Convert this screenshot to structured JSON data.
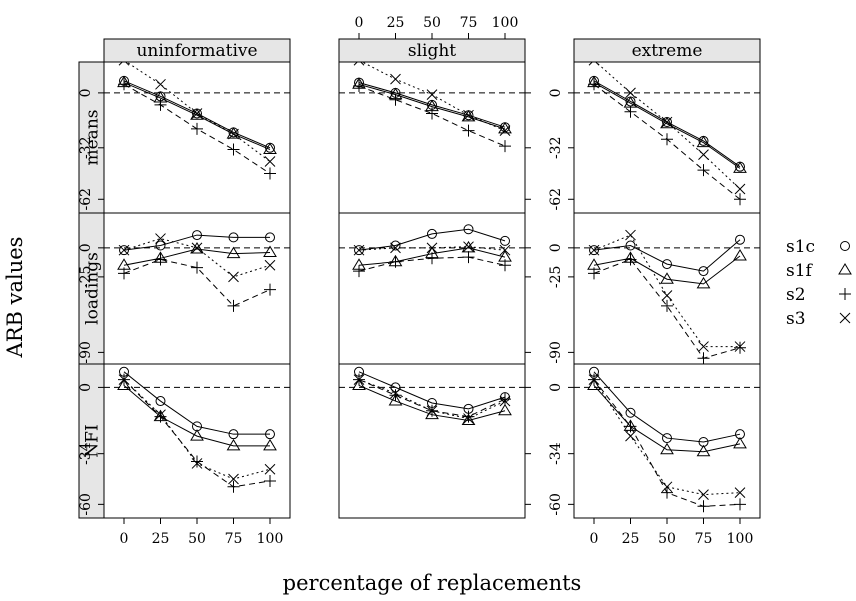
{
  "chart_data": {
    "type": "line",
    "xlabel": "percentage of replacements",
    "ylabel": "ARB values",
    "x": [
      0,
      25,
      50,
      75,
      100
    ],
    "x_tick_labels": [
      "0",
      "25",
      "50",
      "75",
      "100"
    ],
    "columns": [
      "uninformative",
      "slight",
      "extreme"
    ],
    "rows": [
      {
        "name": "means",
        "ylim": [
          -70,
          18
        ],
        "ticks": [
          0,
          -32,
          -62
        ],
        "tick_labels": [
          "0",
          "-32",
          "-62"
        ]
      },
      {
        "name": "loadings",
        "ylim": [
          -100,
          30
        ],
        "ticks": [
          0,
          -25,
          -90
        ],
        "tick_labels": [
          "0",
          "-25",
          "-90"
        ]
      },
      {
        "name": "NFI",
        "ylim": [
          -67,
          12
        ],
        "ticks": [
          0,
          -34,
          -60
        ],
        "tick_labels": [
          "0",
          "-34",
          "-60"
        ]
      }
    ],
    "legend": {
      "position": "right",
      "entries": [
        "s1c",
        "s1f",
        "s2",
        "s3"
      ]
    },
    "panels": [
      {
        "column": "uninformative",
        "row": "means",
        "series": [
          {
            "name": "s1c",
            "values": [
              7,
              -2,
              -12,
              -23,
              -32
            ]
          },
          {
            "name": "s1f",
            "values": [
              6,
              -3,
              -13,
              -24,
              -33
            ]
          },
          {
            "name": "s2",
            "values": [
              5,
              -7,
              -21,
              -33,
              -47
            ]
          },
          {
            "name": "s3",
            "values": [
              19,
              5,
              -12,
              -24,
              -40
            ]
          }
        ]
      },
      {
        "column": "uninformative",
        "row": "loadings",
        "series": [
          {
            "name": "s1c",
            "values": [
              -2,
              2,
              11,
              9,
              9
            ]
          },
          {
            "name": "s1f",
            "values": [
              -15,
              -9,
              -1,
              -5,
              -4
            ]
          },
          {
            "name": "s2",
            "values": [
              -22,
              -10,
              -17,
              -50,
              -36
            ]
          },
          {
            "name": "s3",
            "values": [
              -2,
              8,
              0,
              -25,
              -15
            ]
          }
        ]
      },
      {
        "column": "uninformative",
        "row": "NFI",
        "series": [
          {
            "name": "s1c",
            "values": [
              8,
              -7,
              -20,
              -24,
              -24
            ]
          },
          {
            "name": "s1f",
            "values": [
              1,
              -15,
              -25,
              -30,
              -30
            ]
          },
          {
            "name": "s2",
            "values": [
              4,
              -15,
              -38,
              -51,
              -48
            ]
          },
          {
            "name": "s3",
            "values": [
              4,
              -14,
              -39,
              -47,
              -42
            ]
          }
        ]
      },
      {
        "column": "slight",
        "row": "means",
        "series": [
          {
            "name": "s1c",
            "values": [
              6,
              0,
              -7,
              -13,
              -20
            ]
          },
          {
            "name": "s1f",
            "values": [
              5,
              -1,
              -8,
              -14,
              -21
            ]
          },
          {
            "name": "s2",
            "values": [
              4,
              -4,
              -12,
              -22,
              -31
            ]
          },
          {
            "name": "s3",
            "values": [
              19,
              8,
              -1,
              -13,
              -22
            ]
          }
        ]
      },
      {
        "column": "slight",
        "row": "loadings",
        "series": [
          {
            "name": "s1c",
            "values": [
              -2,
              2,
              12,
              16,
              6
            ]
          },
          {
            "name": "s1f",
            "values": [
              -15,
              -12,
              -5,
              0,
              -8
            ]
          },
          {
            "name": "s2",
            "values": [
              -20,
              -12,
              -9,
              -8,
              -15
            ]
          },
          {
            "name": "s3",
            "values": [
              -2,
              0,
              0,
              1,
              -2
            ]
          }
        ]
      },
      {
        "column": "slight",
        "row": "NFI",
        "series": [
          {
            "name": "s1c",
            "values": [
              8,
              0,
              -8,
              -11,
              -5
            ]
          },
          {
            "name": "s1f",
            "values": [
              1,
              -7,
              -14,
              -17,
              -12
            ]
          },
          {
            "name": "s2",
            "values": [
              4,
              -4,
              -12,
              -15,
              -6
            ]
          },
          {
            "name": "s3",
            "values": [
              4,
              -3,
              -12,
              -16,
              -7
            ]
          }
        ]
      },
      {
        "column": "extreme",
        "row": "means",
        "series": [
          {
            "name": "s1c",
            "values": [
              7,
              -5,
              -17,
              -28,
              -43
            ]
          },
          {
            "name": "s1f",
            "values": [
              6,
              -6,
              -18,
              -29,
              -44
            ]
          },
          {
            "name": "s2",
            "values": [
              5,
              -11,
              -27,
              -45,
              -62
            ]
          },
          {
            "name": "s3",
            "values": [
              19,
              0,
              -17,
              -36,
              -56
            ]
          }
        ]
      },
      {
        "column": "extreme",
        "row": "loadings",
        "series": [
          {
            "name": "s1c",
            "values": [
              -2,
              2,
              -14,
              -20,
              7
            ]
          },
          {
            "name": "s1f",
            "values": [
              -15,
              -9,
              -27,
              -31,
              -7
            ]
          },
          {
            "name": "s2",
            "values": [
              -22,
              -10,
              -50,
              -95,
              -86
            ]
          },
          {
            "name": "s3",
            "values": [
              -2,
              11,
              -41,
              -85,
              -85
            ]
          }
        ]
      },
      {
        "column": "extreme",
        "row": "NFI",
        "series": [
          {
            "name": "s1c",
            "values": [
              8,
              -13,
              -26,
              -28,
              -24
            ]
          },
          {
            "name": "s1f",
            "values": [
              1,
              -20,
              -32,
              -33,
              -29
            ]
          },
          {
            "name": "s2",
            "values": [
              4,
              -20,
              -54,
              -61,
              -60
            ]
          },
          {
            "name": "s3",
            "values": [
              4,
              -25,
              -51,
              -55,
              -54
            ]
          }
        ]
      }
    ]
  }
}
